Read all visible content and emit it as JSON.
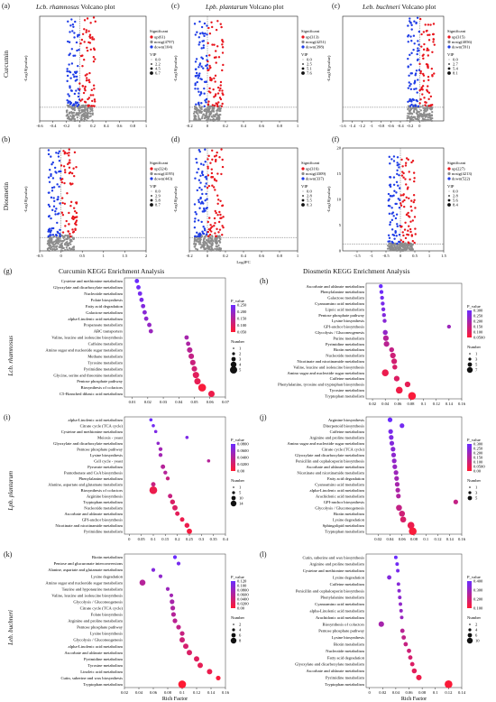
{
  "row_labels": [
    "Curcumin",
    "Diosmetin"
  ],
  "kegg_row_labels": [
    "Lcb. rhamnosus",
    "Lpb. plantarum",
    "Leb. buchneri"
  ],
  "volcano_titles": {
    "a": {
      "italic": "Lcb. rhamnosus",
      "rest": " Volcano plot"
    },
    "c1": {
      "italic": "Lpb. plantarum",
      "rest": " Volcano plot"
    },
    "c2": {
      "italic": "Leb. buchneri",
      "rest": " Volcano plot"
    }
  },
  "kegg_titles": {
    "g": "Curcumin KEGG Enrichment Analysis",
    "h": "Diosmetin KEGG Enrichment Analysis"
  },
  "letters": {
    "a": "(a)",
    "b": "(b)",
    "c1": "(c)",
    "c2": "(c)",
    "d": "(d)",
    "f": "(f)",
    "g": "(g)",
    "h": "(h)",
    "i": "(i)",
    "j": "(j)",
    "k": "(k)",
    "l": "(l)"
  },
  "shared": {
    "volcano_ylabel": "-Log10(pvalue)",
    "volcano_xlabel": "Log2FC",
    "rich_factor": "Rich Factor",
    "significant": "Significant",
    "vip": "VIP",
    "p_value": "P_value",
    "number": "Number"
  },
  "colors": {
    "up": "#e8141b",
    "nosig": "#8c8c8c",
    "down": "#1e3ce6",
    "dot_high": "#ff1a33",
    "dot_low": "#6a2cff"
  },
  "chart_data": [
    {
      "id": "a",
      "type": "scatter",
      "xlim": [
        -0.6,
        1
      ],
      "ylim": [
        0,
        10
      ],
      "xticks": [
        "-0.6",
        "-0.4",
        "-0.2",
        "0",
        "0.2",
        "0.4",
        "0.6",
        "0.8",
        "1"
      ],
      "legend": [
        "up(61)",
        "nosig(4797)",
        "down(104)"
      ],
      "vip": [
        "0.0",
        "2.2",
        "4.5",
        "6.7"
      ]
    },
    {
      "id": "c1",
      "type": "scatter",
      "xlim": [
        -0.2,
        1
      ],
      "ylim": [
        0,
        10
      ],
      "xticks": [
        "-0.2",
        "0",
        "0.2",
        "0.4",
        "0.6",
        "0.8",
        "1"
      ],
      "legend": [
        "up(313)",
        "nosig(4251)",
        "down(398)"
      ],
      "vip": [
        "0.0",
        "2.5",
        "5.1",
        "7.6"
      ]
    },
    {
      "id": "c2",
      "type": "scatter",
      "xlim": [
        -1.6,
        0.5
      ],
      "ylim": [
        0,
        10
      ],
      "xticks": [
        "-1.6",
        "-1.4",
        "-1.2",
        "-1",
        "-0.8",
        "-0.6",
        "-0.4",
        "-0.2",
        "0"
      ],
      "legend": [
        "up(315)",
        "nosig(4056)",
        "down(591)"
      ],
      "vip": [
        "0.0",
        "2.7",
        "5.4",
        "8.1"
      ]
    },
    {
      "id": "b",
      "type": "scatter",
      "xlim": [
        -0.5,
        2
      ],
      "ylim": [
        0,
        10
      ],
      "xticks": [
        "-0.5",
        "0",
        "0.5",
        "1",
        "1.5",
        "2"
      ],
      "legend": [
        "up(324)",
        "nosig(4195)",
        "down(443)"
      ],
      "vip": [
        "0.0",
        "2.9",
        "5.8",
        "8.7"
      ]
    },
    {
      "id": "d",
      "type": "scatter",
      "xlim": [
        -0.2,
        1
      ],
      "ylim": [
        0,
        10
      ],
      "xticks": [
        "-0.2",
        "0",
        "0.2",
        "0.4",
        "0.6",
        "0.8",
        "1"
      ],
      "legend": [
        "up(316)",
        "nosig(4309)",
        "down(337)"
      ],
      "vip": [
        "0.0",
        "2.8",
        "5.5",
        "8.3"
      ]
    },
    {
      "id": "f",
      "type": "scatter",
      "xlim": [
        -2,
        1.5
      ],
      "ylim": [
        0,
        20
      ],
      "xticks": [
        "-1.5",
        "-1",
        "-0.5",
        "0",
        "0.5",
        "1",
        "1.5"
      ],
      "yticks": [
        "0",
        "5",
        "10",
        "15",
        "20"
      ],
      "legend": [
        "up(227)",
        "nosig(4213)",
        "down(522)"
      ],
      "vip": [
        "0.0",
        "2.8",
        "5.6",
        "8.4"
      ]
    },
    {
      "id": "g",
      "type": "scatter",
      "subtype": "bubble",
      "xticks": [
        "0.01",
        "0.02",
        "0.03",
        "0.04",
        "0.05",
        "0.06",
        "0.07"
      ],
      "xlim": [
        0.005,
        0.07
      ],
      "pvalue_ticks": [
        "0.250",
        "0.200",
        "0.150",
        "0.100",
        "0.050"
      ],
      "number_ticks": [
        "1",
        "2",
        "3",
        "4",
        "5"
      ],
      "terms": [
        "Cysteine and methionine metabolism",
        "Glyoxylate and dicarboxylate metabolism",
        "Nucleotide metabolism",
        "Folate biosynthesis",
        "Fatty acid degradation",
        "Galactose metabolism",
        "alpha-Linolenic acid metabolism",
        "Propanoate metabolism",
        "ABC transporters",
        "Valine, leucine and isoleucine biosynthesis",
        "Caffeine metabolism",
        "Amino sugar and nucleotide sugar metabolism",
        "Methane metabolism",
        "Tyrosine metabolism",
        "Pyrimidine metabolism",
        "Glycine, serine and threonine metabolism",
        "Pentose phosphate pathway",
        "Biosynthesis of cofactors",
        "C5-Branched dibasic acid metabolism"
      ],
      "x": [
        0.013,
        0.014,
        0.015,
        0.016,
        0.017,
        0.018,
        0.019,
        0.021,
        0.022,
        0.045,
        0.046,
        0.047,
        0.048,
        0.049,
        0.05,
        0.051,
        0.052,
        0.055,
        0.061
      ],
      "num": [
        1,
        1,
        1,
        1,
        1,
        1,
        1,
        1,
        1,
        1,
        1,
        2,
        2,
        2,
        2,
        3,
        3,
        5,
        3
      ],
      "p": [
        0.25,
        0.24,
        0.23,
        0.22,
        0.21,
        0.2,
        0.19,
        0.18,
        0.17,
        0.15,
        0.14,
        0.12,
        0.1,
        0.09,
        0.08,
        0.05,
        0.04,
        0.01,
        0.03
      ]
    },
    {
      "id": "h",
      "type": "scatter",
      "subtype": "bubble",
      "xticks": [
        "0.02",
        "0.04",
        "0.06",
        "0.08",
        "0.1",
        "0.12",
        "0.14",
        "0.16"
      ],
      "xlim": [
        0.01,
        0.16
      ],
      "pvalue_ticks": [
        "0.300",
        "0.250",
        "0.200",
        "0.150",
        "0.100",
        "0.0500"
      ],
      "number_ticks": [
        "1",
        "3",
        "5",
        "7"
      ],
      "terms": [
        "Ascorbate and aldarate metabolism",
        "Phenylalanine metabolism",
        "Galactose metabolism",
        "Cyanoamino acid metabolism",
        "Lipoic acid metabolism",
        "Pentose phosphate pathway",
        "Lysine biosynthesis",
        "GPI-anchor biosynthesis",
        "Glycolysis / Gluconeogenesis",
        "Purine metabolism",
        "Pyrimidine metabolism",
        "Biotin metabolism",
        "Nucleotide metabolism",
        "Nicotinate and nicotinamide metabolism",
        "Valine, leucine and isoleucine biosynthesis",
        "Amino sugar and nucleotide sugar metabolism",
        "Caffeine metabolism",
        "Phenylalanine, tyrosine and tryptophan biosynthesis",
        "Tyrosine metabolism",
        "Tryptophan metabolism"
      ],
      "x": [
        0.033,
        0.034,
        0.035,
        0.036,
        0.037,
        0.038,
        0.039,
        0.14,
        0.04,
        0.041,
        0.042,
        0.05,
        0.052,
        0.054,
        0.055,
        0.04,
        0.058,
        0.075,
        0.062,
        0.082
      ],
      "num": [
        1,
        1,
        1,
        1,
        1,
        1,
        1,
        1,
        2,
        3,
        3,
        2,
        3,
        3,
        2,
        5,
        3,
        3,
        5,
        7
      ],
      "p": [
        0.3,
        0.29,
        0.28,
        0.27,
        0.26,
        0.25,
        0.24,
        0.2,
        0.22,
        0.15,
        0.14,
        0.12,
        0.1,
        0.09,
        0.08,
        0.04,
        0.07,
        0.05,
        0.03,
        0.01
      ]
    },
    {
      "id": "i",
      "type": "scatter",
      "subtype": "bubble",
      "xticks": [
        "0",
        "0.05",
        "0.1",
        "0.15",
        "0.2",
        "0.25",
        "0.3",
        "0.35",
        "0.4"
      ],
      "xlim": [
        -0.02,
        0.4
      ],
      "pvalue_ticks": [
        "0.0800",
        "0.0600",
        "0.0400",
        "0.0200",
        "0.00"
      ],
      "number_ticks": [
        "1",
        "5",
        "10",
        "14"
      ],
      "terms": [
        "alpha-Linolenic acid metabolism",
        "Citrate cycle (TCA cycle)",
        "Cysteine and methionine metabolism",
        "Meiosis - yeast",
        "Glyoxylate and dicarboxylate metabolism",
        "Pentose phosphate pathway",
        "Lysine biosynthesis",
        "Cell cycle - yeast",
        "Pyruvate metabolism",
        "Pantothenate and CoA biosynthesis",
        "Phenylalanine metabolism",
        "Alanine, aspartate and glutamate metabolism",
        "Biosynthesis of cofactors",
        "Arginine biosynthesis",
        "Tryptophan metabolism",
        "Nucleotide metabolism",
        "Ascorbate and aldarate metabolism",
        "GPI-anchor biosynthesis",
        "Nicotinate and nicotinamide metabolism",
        "Pyrimidine metabolism"
      ],
      "x": [
        0.09,
        0.1,
        0.11,
        0.24,
        0.12,
        0.13,
        0.13,
        0.33,
        0.14,
        0.15,
        0.16,
        0.1,
        0.1,
        0.17,
        0.18,
        0.19,
        0.2,
        0.22,
        0.24,
        0.25
      ],
      "num": [
        1,
        1,
        1,
        1,
        1,
        2,
        2,
        1,
        3,
        2,
        2,
        3,
        14,
        3,
        4,
        5,
        3,
        3,
        4,
        5
      ],
      "p": [
        0.08,
        0.075,
        0.07,
        0.07,
        0.06,
        0.05,
        0.05,
        0.04,
        0.04,
        0.04,
        0.03,
        0.03,
        0.01,
        0.03,
        0.02,
        0.02,
        0.015,
        0.01,
        0.01,
        0.005
      ]
    },
    {
      "id": "j",
      "type": "scatter",
      "subtype": "bubble",
      "xticks": [
        "0.02",
        "0.04",
        "0.06",
        "0.08",
        "0.1",
        "0.12",
        "0.14",
        "0.16"
      ],
      "xlim": [
        0.0,
        0.16
      ],
      "pvalue_ticks": [
        "0.300",
        "0.250",
        "0.200",
        "0.150",
        "0.100",
        "0.0500",
        "0.00"
      ],
      "number_ticks": [
        "1",
        "3",
        "5"
      ],
      "terms": [
        "Arginine biosynthesis",
        "Diterpenoid biosynthesis",
        "Caffeine metabolism",
        "Arginine and proline metabolism",
        "Amino sugar and nucleotide sugar metabolism",
        "Citrate cycle (TCA cycle)",
        "Glyoxylate and dicarboxylate metabolism",
        "Penicillin and cephalosporin biosynthesis",
        "Ascorbate and aldarate metabolism",
        "Nicotinate and nicotinamide metabolism",
        "Fatty acid degradation",
        "Cyanoamino acid metabolism",
        "alpha-Linolenic acid metabolism",
        "Arachidonic acid metabolism",
        "GPI-anchor biosynthesis",
        "Glycolysis / Gluconeogenesis",
        "Biotin metabolism",
        "Lysine degradation",
        "Sphingolipid metabolism",
        "Tryptophan metabolism"
      ],
      "x": [
        0.04,
        0.06,
        0.041,
        0.042,
        0.043,
        0.045,
        0.046,
        0.047,
        0.048,
        0.05,
        0.051,
        0.052,
        0.053,
        0.054,
        0.15,
        0.055,
        0.06,
        0.062,
        0.075,
        0.078
      ],
      "num": [
        1,
        1,
        1,
        1,
        1,
        1,
        1,
        1,
        1,
        1,
        1,
        1,
        1,
        1,
        1,
        2,
        2,
        2,
        3,
        4
      ],
      "p": [
        0.3,
        0.28,
        0.27,
        0.26,
        0.25,
        0.24,
        0.23,
        0.22,
        0.21,
        0.2,
        0.19,
        0.18,
        0.17,
        0.16,
        0.12,
        0.12,
        0.1,
        0.08,
        0.04,
        0.01
      ]
    },
    {
      "id": "k",
      "type": "scatter",
      "subtype": "bubble",
      "xticks": [
        "0.02",
        "0.04",
        "0.06",
        "0.08",
        "0.1",
        "0.12",
        "0.14",
        "0.16"
      ],
      "xlim": [
        0.02,
        0.16
      ],
      "pvalue_ticks": [
        "0.120",
        "0.100",
        "0.0800",
        "0.0600",
        "0.0400",
        "0.0200",
        "0.00"
      ],
      "number_ticks": [
        "2",
        "4",
        "6",
        "8"
      ],
      "terms": [
        "Biotin metabolism",
        "Pentose and glucuronate interconversions",
        "Alanine, aspartate and glutamate metabolism",
        "Lysine degradation",
        "Amino sugar and nucleotide sugar metabolism",
        "Taurine and hypotaurine metabolism",
        "Valine, leucine and isoleucine biosynthesis",
        "Glycolysis / Gluconeogenesis",
        "Citrate cycle (TCA cycle)",
        "Folate biosynthesis",
        "Arginine and proline metabolism",
        "Pentose phosphate pathway",
        "Lysine biosynthesis",
        "Glycolysis / Gluconeogenesis",
        "alpha-Linolenic acid metabolism",
        "Ascorbate and aldarate metabolism",
        "Pyrimidine metabolism",
        "Tyrosine metabolism",
        "Linoleic acid metabolism",
        "Cutin, suberine and wax biosynthesis",
        "Tryptophan metabolism"
      ],
      "x": [
        0.09,
        0.095,
        0.06,
        0.07,
        0.045,
        0.08,
        0.085,
        0.086,
        0.087,
        0.088,
        0.09,
        0.095,
        0.1,
        0.1,
        0.105,
        0.11,
        0.12,
        0.125,
        0.138,
        0.15,
        0.1
      ],
      "num": [
        1,
        1,
        1,
        1,
        4,
        1,
        1,
        2,
        2,
        2,
        2,
        2,
        2,
        3,
        3,
        3,
        3,
        3,
        3,
        2,
        8
      ],
      "p": [
        0.12,
        0.11,
        0.1,
        0.09,
        0.06,
        0.08,
        0.075,
        0.07,
        0.065,
        0.06,
        0.055,
        0.05,
        0.045,
        0.04,
        0.035,
        0.03,
        0.025,
        0.02,
        0.015,
        0.005,
        0.0
      ]
    },
    {
      "id": "l",
      "type": "scatter",
      "subtype": "bubble",
      "xticks": [
        "0",
        "0.02",
        "0.04",
        "0.06",
        "0.08",
        "0.1",
        "0.12",
        "0.14"
      ],
      "xlim": [
        -0.005,
        0.14
      ],
      "pvalue_ticks": [
        "0.400",
        "0.300",
        "0.200",
        "0.100"
      ],
      "number_ticks": [
        "2",
        "4",
        "6",
        "10"
      ],
      "terms": [
        "Cutin, suberine and wax biosynthesis",
        "Arginine and proline metabolism",
        "Cysteine and methionine metabolism",
        "Lysine degradation",
        "Caffeine metabolism",
        "Penicillin and cephalosporin biosynthesis",
        "Phenylalanine metabolism",
        "Cyanoamino acid metabolism",
        "alpha-Linolenic acid metabolism",
        "Arachidonic acid metabolism",
        "Biosynthesis of cofactors",
        "Pentose phosphate pathway",
        "Lysine biosynthesis",
        "Biotin metabolism",
        "Nucleotide metabolism",
        "Fatty acid degradation",
        "Glyoxylate and dicarboxylate metabolism",
        "Ascorbate and aldarate metabolism",
        "Pyrimidine metabolism",
        "Tryptophan metabolism"
      ],
      "x": [
        0.04,
        0.042,
        0.043,
        0.03,
        0.044,
        0.045,
        0.046,
        0.047,
        0.048,
        0.049,
        0.018,
        0.05,
        0.052,
        0.055,
        0.06,
        0.062,
        0.065,
        0.068,
        0.075,
        0.12
      ],
      "num": [
        1,
        1,
        1,
        2,
        1,
        1,
        1,
        1,
        1,
        1,
        4,
        2,
        2,
        2,
        2,
        2,
        2,
        3,
        4,
        10
      ],
      "p": [
        0.42,
        0.4,
        0.38,
        0.35,
        0.34,
        0.33,
        0.32,
        0.31,
        0.3,
        0.29,
        0.25,
        0.2,
        0.18,
        0.16,
        0.14,
        0.12,
        0.1,
        0.08,
        0.05,
        0.01
      ]
    }
  ]
}
